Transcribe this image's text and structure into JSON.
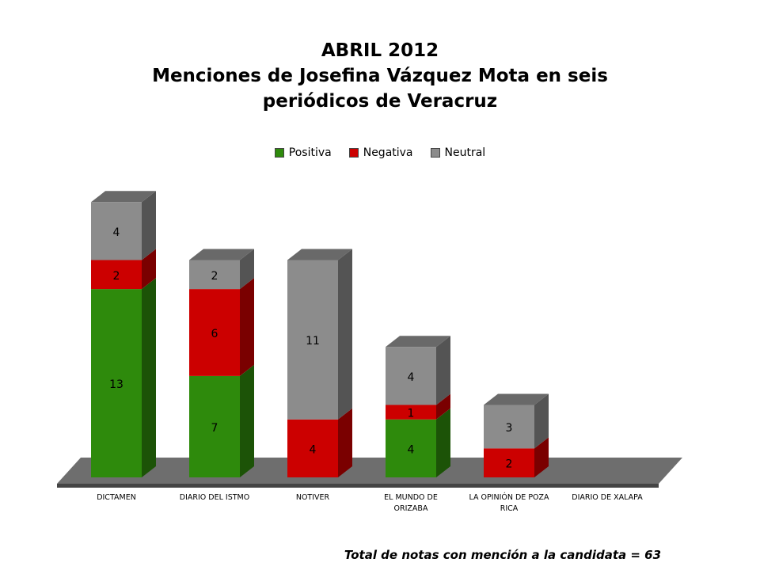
{
  "chart_data": {
    "type": "bar3d_stacked",
    "title": "ABRIL 2012",
    "subtitle": "Menciones de Josefina Vázquez Mota en seis periódicos de Veracruz",
    "categories": [
      "DICTAMEN",
      "DIARIO DEL ISTMO",
      "NOTIVER",
      "EL MUNDO DE ORIZABA",
      "LA OPINIÓN DE POZA RICA",
      "DIARIO DE XALAPA"
    ],
    "series": [
      {
        "name": "Positiva",
        "color": "#2e8a0c",
        "values": [
          13,
          7,
          0,
          4,
          0,
          0
        ]
      },
      {
        "name": "Negativa",
        "color": "#cc0000",
        "values": [
          2,
          6,
          4,
          1,
          2,
          0
        ]
      },
      {
        "name": "Neutral",
        "color": "#8c8c8c",
        "values": [
          4,
          2,
          11,
          4,
          3,
          0
        ]
      }
    ],
    "footnote": "Total de notas con mención a la candidata =  63"
  }
}
